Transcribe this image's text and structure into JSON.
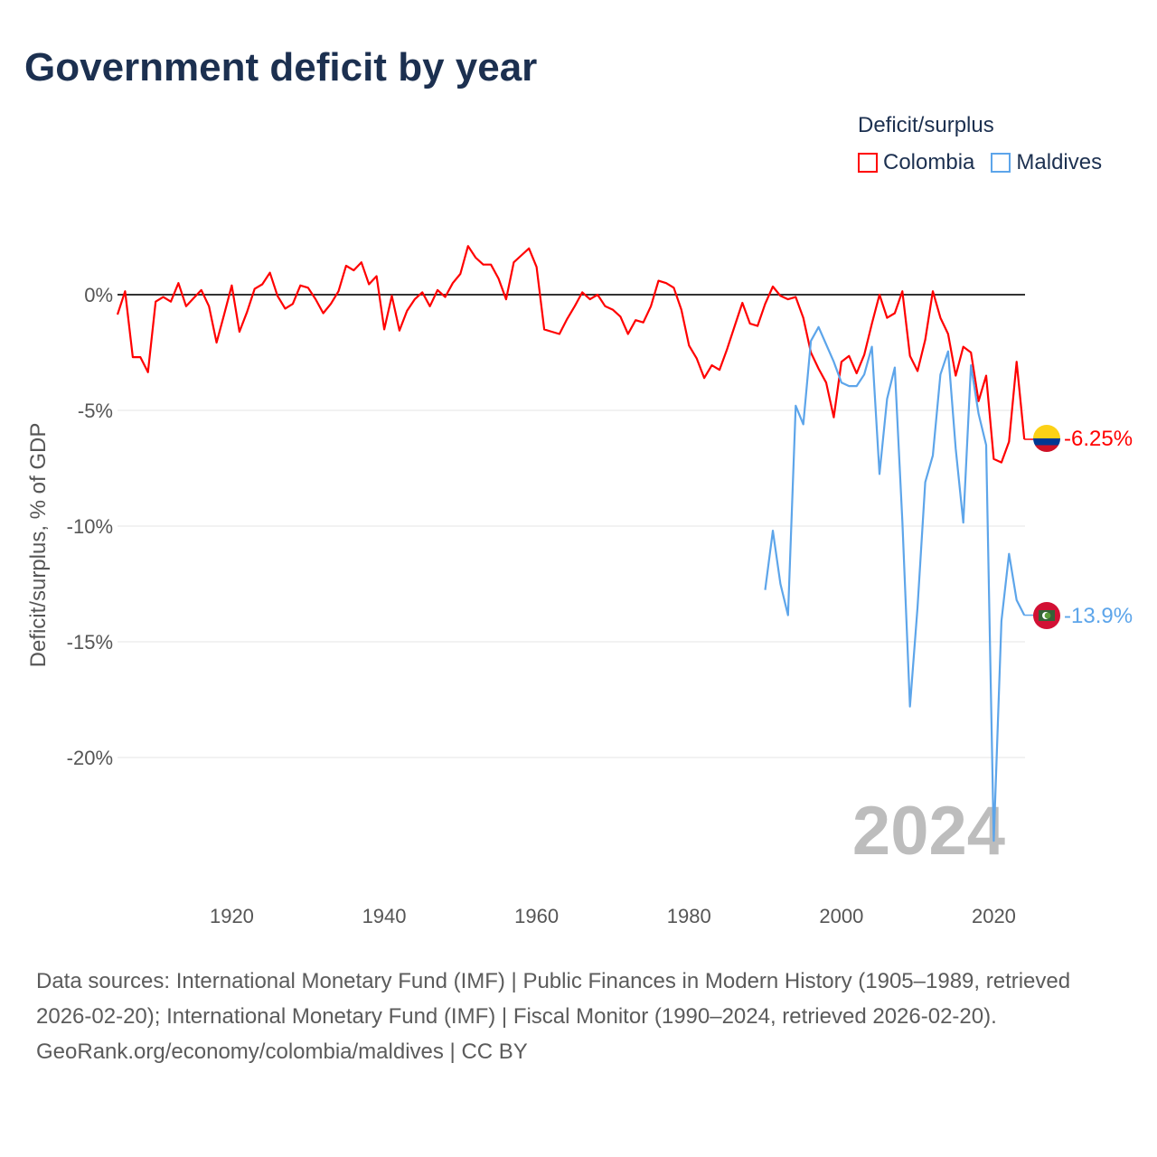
{
  "title": "Government deficit by year",
  "legend": {
    "title": "Deficit/surplus",
    "items": [
      {
        "label": "Colombia",
        "color": "#ff0000"
      },
      {
        "label": "Maldives",
        "color": "#5da5ea"
      }
    ]
  },
  "watermark_year": "2024",
  "footer": {
    "sources": "Data sources: International Monetary Fund (IMF) | Public Finances in Modern History (1905–1989, retrieved 2026-02-20); International Monetary Fund (IMF) | Fiscal Monitor (1990–2024, retrieved 2026-02-20).",
    "credit": "GeoRank.org/economy/colombia/maldives | CC BY"
  },
  "chart_data": {
    "type": "line",
    "title": "Government deficit by year",
    "xlabel": "",
    "ylabel": "Deficit/surplus, % of GDP",
    "xlim": [
      1905,
      2024
    ],
    "ylim": [
      -24,
      3
    ],
    "x_ticks": [
      1920,
      1940,
      1960,
      1980,
      2000,
      2020
    ],
    "y_ticks": [
      0,
      -5,
      -10,
      -15,
      -20
    ],
    "y_tick_labels": [
      "0%",
      "-5%",
      "-10%",
      "-15%",
      "-20%"
    ],
    "grid": true,
    "legend_position": "top-right",
    "series": [
      {
        "name": "Colombia",
        "color": "#ff0000",
        "end_label": "-6.25%",
        "start_year": 1905,
        "values": [
          -0.86,
          0.15,
          -2.7,
          -2.7,
          -3.35,
          -0.3,
          -0.1,
          -0.3,
          0.5,
          -0.5,
          -0.15,
          0.2,
          -0.5,
          -2.07,
          -0.85,
          0.4,
          -1.6,
          -0.75,
          0.25,
          0.45,
          0.95,
          -0.05,
          -0.6,
          -0.4,
          0.4,
          0.3,
          -0.2,
          -0.8,
          -0.4,
          0.15,
          1.25,
          1.05,
          1.4,
          0.45,
          0.8,
          -1.5,
          -0.05,
          -1.55,
          -0.7,
          -0.2,
          0.1,
          -0.5,
          0.2,
          -0.1,
          0.5,
          0.9,
          2.1,
          1.6,
          1.3,
          1.3,
          0.7,
          -0.2,
          1.4,
          1.7,
          2.0,
          1.2,
          -1.5,
          -1.6,
          -1.7,
          -1.05,
          -0.5,
          0.1,
          -0.2,
          0.0,
          -0.5,
          -0.65,
          -0.95,
          -1.7,
          -1.1,
          -1.2,
          -0.5,
          0.6,
          0.5,
          0.3,
          -0.65,
          -2.2,
          -2.75,
          -3.6,
          -3.05,
          -3.25,
          -2.35,
          -1.35,
          -0.35,
          -1.25,
          -1.35,
          -0.4,
          0.35,
          -0.05,
          -0.2,
          -0.1,
          -1.0,
          -2.5,
          -3.2,
          -3.8,
          -5.3,
          -2.9,
          -2.65,
          -3.4,
          -2.6,
          -1.25,
          0.0,
          -1.0,
          -0.8,
          0.15,
          -2.65,
          -3.3,
          -1.95,
          0.15,
          -1.0,
          -1.7,
          -3.5,
          -2.25,
          -2.5,
          -4.6,
          -3.5,
          -7.1,
          -7.25,
          -6.35,
          -2.9,
          -6.25
        ]
      },
      {
        "name": "Maldives",
        "color": "#5da5ea",
        "end_label": "-13.9%",
        "start_year": 1990,
        "values": [
          -12.76,
          -10.2,
          -12.5,
          -13.85,
          -4.8,
          -5.6,
          -2.0,
          -1.4,
          -2.15,
          -2.9,
          -3.8,
          -3.95,
          -3.95,
          -3.45,
          -2.25,
          -7.75,
          -4.5,
          -3.15,
          -9.8,
          -17.8,
          -13.5,
          -8.1,
          -6.95,
          -3.45,
          -2.45,
          -6.65,
          -9.85,
          -3.05,
          -5.15,
          -6.5,
          -23.6,
          -14.1,
          -11.2,
          -13.2,
          -13.85
        ]
      }
    ]
  }
}
